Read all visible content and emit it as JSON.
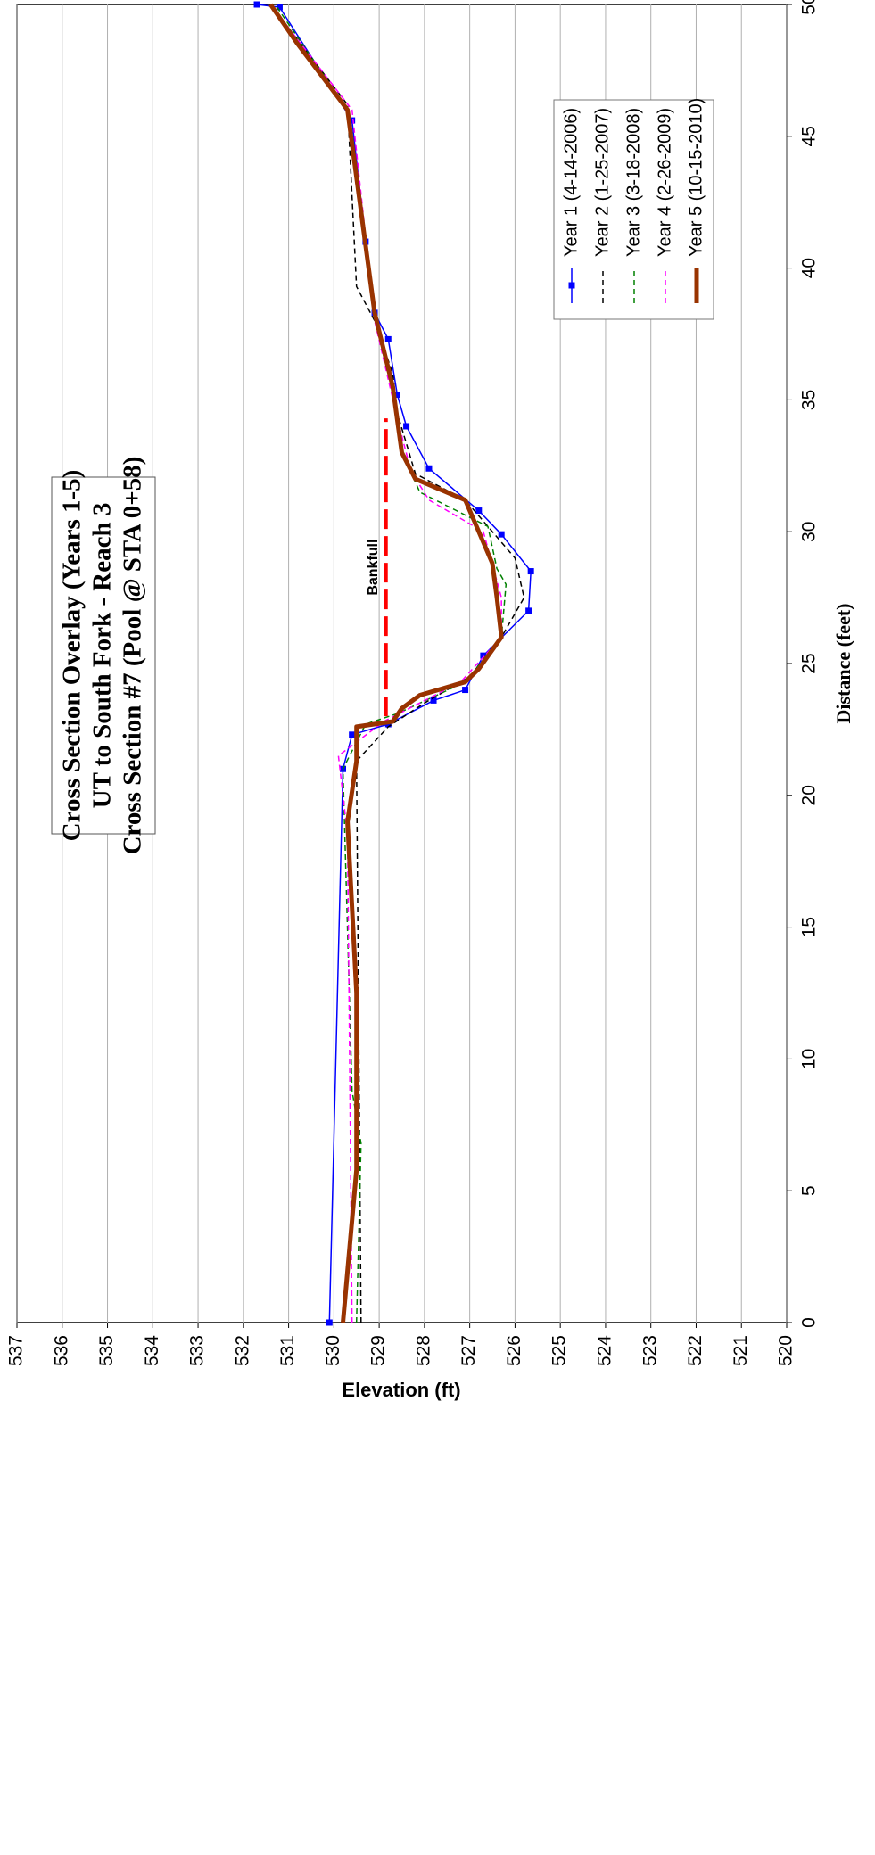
{
  "chart_data": {
    "type": "line",
    "title": [
      "Cross Section Overlay (Years 1-5)",
      "UT to South Fork - Reach 3",
      "Cross Section #7 (Pool @ STA 0+58)"
    ],
    "x_label": "Distance (feet)",
    "y_label": "Elevation (ft)",
    "xlim": [
      0,
      50
    ],
    "xticks": [
      0,
      5,
      10,
      15,
      20,
      25,
      30,
      35,
      40,
      45,
      50
    ],
    "ylim": [
      520,
      537
    ],
    "yticks": [
      520,
      521,
      522,
      523,
      524,
      525,
      526,
      527,
      528,
      529,
      530,
      531,
      532,
      533,
      534,
      535,
      536,
      537
    ],
    "grid": true,
    "legend": "right",
    "series": [
      {
        "name": "Year 1 (4-14-2006)",
        "color": "#0000ff",
        "width": 1.5,
        "dash": false,
        "marker": "square",
        "x": [
          0,
          21,
          22.3,
          22.7,
          23.6,
          24,
          25.3,
          27,
          28.5,
          29.9,
          30.8,
          32.4,
          34,
          35.2,
          37.3,
          38.3,
          41,
          45.6,
          49.9,
          50
        ],
        "values": [
          530.1,
          529.8,
          529.6,
          528.8,
          527.8,
          527.1,
          526.7,
          525.7,
          525.65,
          526.3,
          526.8,
          527.9,
          528.4,
          528.6,
          528.8,
          529.1,
          529.3,
          529.6,
          531.2,
          531.7
        ]
      },
      {
        "name": "Year 2 (1-25-2007)",
        "color": "#000000",
        "width": 1.5,
        "dash": true,
        "marker": "none",
        "x": [
          0,
          21.3,
          22.6,
          23.5,
          24.5,
          26,
          27.5,
          29,
          30.2,
          31.2,
          32.2,
          34.5,
          36,
          38,
          39.3,
          46.2,
          50
        ],
        "values": [
          529.4,
          529.5,
          528.8,
          528.0,
          527.0,
          526.3,
          525.8,
          526.0,
          526.6,
          527.1,
          528.2,
          528.6,
          528.7,
          529.1,
          529.5,
          529.7,
          531.4
        ]
      },
      {
        "name": "Year 3 (3-18-2008)",
        "color": "#008000",
        "width": 1.5,
        "dash": true,
        "marker": "none",
        "x": [
          0,
          6.8,
          8.8,
          21,
          22.7,
          23.1,
          24.3,
          26,
          28,
          28.6,
          30.2,
          31.5,
          33,
          35.5,
          38.3,
          46,
          50
        ],
        "values": [
          529.5,
          529.4,
          529.6,
          529.8,
          529.3,
          528.6,
          527.1,
          526.3,
          526.2,
          526.4,
          526.6,
          528.1,
          528.5,
          528.7,
          529.1,
          529.7,
          531.3
        ]
      },
      {
        "name": "Year 4 (2-26-2009)",
        "color": "#ff00ff",
        "width": 1.5,
        "dash": true,
        "marker": "none",
        "x": [
          0,
          18.5,
          21.5,
          22.8,
          24.3,
          26,
          27.5,
          30,
          31.2,
          32.3,
          34.3,
          38,
          46,
          50
        ],
        "values": [
          529.6,
          529.7,
          529.9,
          528.9,
          527.2,
          526.3,
          526.3,
          526.7,
          527.9,
          528.3,
          528.6,
          529.1,
          529.6,
          531.4
        ]
      },
      {
        "name": "Year 5 (10-15-2010)",
        "color": "#993300",
        "width": 5,
        "dash": false,
        "marker": "none",
        "x": [
          0,
          5.8,
          12.5,
          19,
          21.3,
          22.6,
          22.8,
          23.3,
          23.8,
          24.3,
          24.8,
          26,
          27.5,
          28.8,
          31.2,
          32,
          33,
          35.5,
          38.3,
          46,
          48.5,
          50
        ],
        "values": [
          529.8,
          529.5,
          529.5,
          529.7,
          529.5,
          529.5,
          528.7,
          528.5,
          528.1,
          527.1,
          526.8,
          526.3,
          526.4,
          526.5,
          527.1,
          528.2,
          528.5,
          528.7,
          529.1,
          529.7,
          530.8,
          531.4
        ]
      }
    ],
    "bankfull": {
      "label": "Bankfull",
      "elevation": 528.85,
      "x": [
        23,
        34.3
      ],
      "color": "#ff0000"
    }
  }
}
